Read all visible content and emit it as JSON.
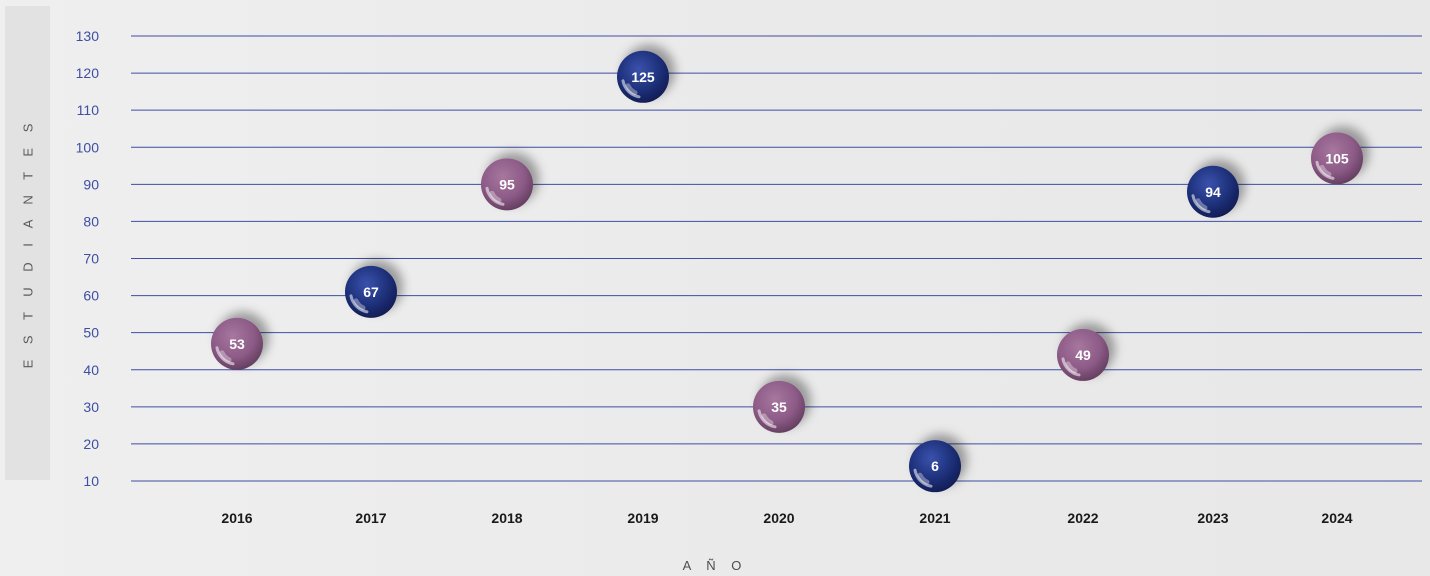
{
  "chart_data": {
    "type": "scatter",
    "xlabel": "A Ñ O",
    "ylabel": "E S T U D I A N T E S",
    "ylim": [
      10,
      130
    ],
    "yticks": [
      "130",
      "120",
      "110",
      "100",
      "90",
      "80",
      "70",
      "60",
      "50",
      "40",
      "30",
      "20",
      "10"
    ],
    "grid": true,
    "categories": [
      "2016",
      "2017",
      "2018",
      "2019",
      "2020",
      "2021",
      "2022",
      "2023",
      "2024"
    ],
    "points": [
      {
        "x": "2016",
        "y": 47,
        "label": "53",
        "color": "pink"
      },
      {
        "x": "2017",
        "y": 61,
        "label": "67",
        "color": "navy"
      },
      {
        "x": "2018",
        "y": 90,
        "label": "95",
        "color": "pink"
      },
      {
        "x": "2019",
        "y": 119,
        "label": "125",
        "color": "navy"
      },
      {
        "x": "2020",
        "y": 30,
        "label": "35",
        "color": "pink"
      },
      {
        "x": "2021",
        "y": 14,
        "label": "6",
        "color": "navy"
      },
      {
        "x": "2022",
        "y": 44,
        "label": "49",
        "color": "pink"
      },
      {
        "x": "2023",
        "y": 88,
        "label": "94",
        "color": "navy"
      },
      {
        "x": "2024",
        "y": 97,
        "label": "105",
        "color": "pink"
      }
    ],
    "colors": {
      "grid": "#3d4ea3",
      "tick_text": "#3d4ea3",
      "category_text": "#1a1a1a",
      "navy": "#1d2f78",
      "pink": "#8c5a86"
    }
  }
}
